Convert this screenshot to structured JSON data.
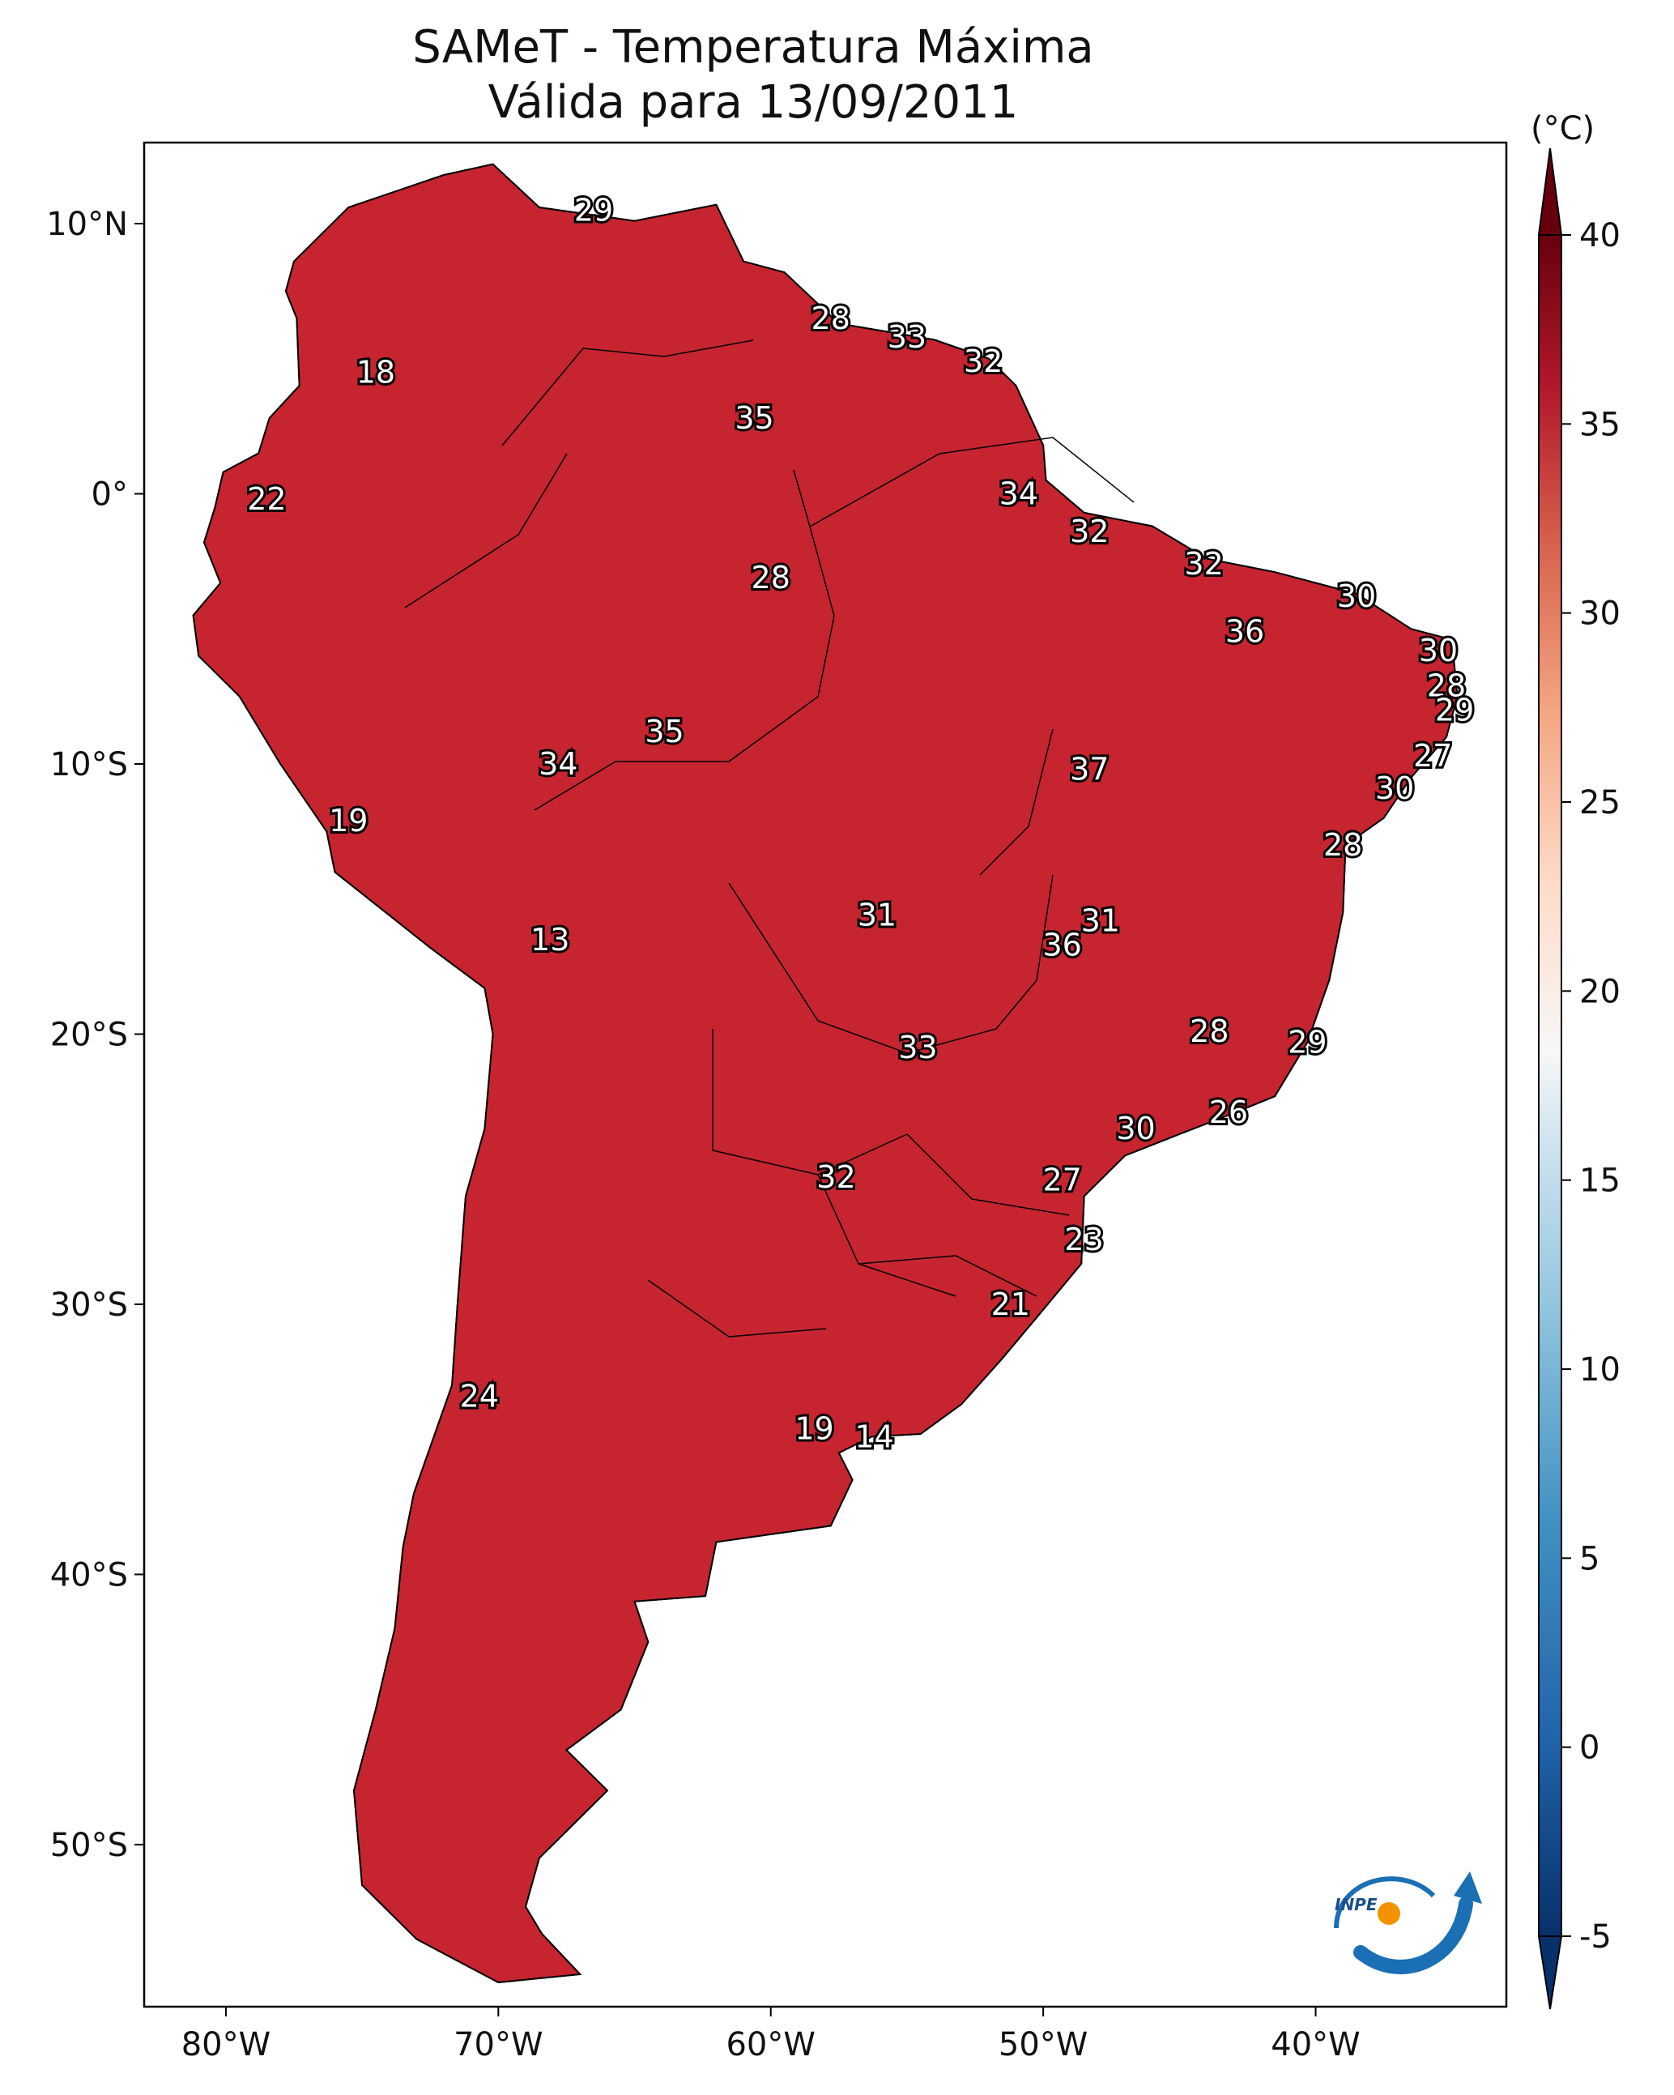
{
  "title_line1": "SAMeT - Temperatura Máxima",
  "title_line2": "Válida para 13/09/2011",
  "colorbar": {
    "unit": "(°C)",
    "ticks": [
      40,
      35,
      30,
      25,
      20,
      15,
      10,
      5,
      0,
      -5
    ],
    "min": -5,
    "max": 40,
    "colors": {
      "cold": "#08306b",
      "mid": "#f7f7f7",
      "hot": "#67000d"
    }
  },
  "axes": {
    "lat_ticks": [
      "10°N",
      "0°",
      "10°S",
      "20°S",
      "30°S",
      "40°S",
      "50°S"
    ],
    "lon_ticks": [
      "80°W",
      "70°W",
      "60°W",
      "50°W",
      "40°W"
    ]
  },
  "map_extent": {
    "lon": [
      -83,
      -33
    ],
    "lat": [
      -56,
      13
    ]
  },
  "stations": [
    {
      "value": "29",
      "lon": -66.5,
      "lat": 10.5
    },
    {
      "value": "28",
      "lon": -57.8,
      "lat": 6.5
    },
    {
      "value": "33",
      "lon": -55,
      "lat": 5.8
    },
    {
      "value": "32",
      "lon": -52.2,
      "lat": 4.9
    },
    {
      "value": "18",
      "lon": -74.5,
      "lat": 4.5
    },
    {
      "value": "35",
      "lon": -60.6,
      "lat": 2.8
    },
    {
      "value": "34",
      "lon": -50.9,
      "lat": 0.0
    },
    {
      "value": "22",
      "lon": -78.5,
      "lat": -0.2
    },
    {
      "value": "32",
      "lon": -48.3,
      "lat": -1.4
    },
    {
      "value": "32",
      "lon": -44.1,
      "lat": -2.6
    },
    {
      "value": "28",
      "lon": -60,
      "lat": -3.1
    },
    {
      "value": "30",
      "lon": -38.5,
      "lat": -3.8
    },
    {
      "value": "36",
      "lon": -42.6,
      "lat": -5.1
    },
    {
      "value": "30",
      "lon": -35.5,
      "lat": -5.8
    },
    {
      "value": "28",
      "lon": -35.2,
      "lat": -7.1
    },
    {
      "value": "29",
      "lon": -34.9,
      "lat": -8.0
    },
    {
      "value": "35",
      "lon": -63.9,
      "lat": -8.8
    },
    {
      "value": "27",
      "lon": -35.7,
      "lat": -9.7
    },
    {
      "value": "34",
      "lon": -67.8,
      "lat": -10.0
    },
    {
      "value": "37",
      "lon": -48.3,
      "lat": -10.2
    },
    {
      "value": "30",
      "lon": -37.1,
      "lat": -10.9
    },
    {
      "value": "19",
      "lon": -75.5,
      "lat": -12.1
    },
    {
      "value": "28",
      "lon": -39,
      "lat": -13.0
    },
    {
      "value": "31",
      "lon": -56.1,
      "lat": -15.6
    },
    {
      "value": "31",
      "lon": -47.9,
      "lat": -15.8
    },
    {
      "value": "36",
      "lon": -49.3,
      "lat": -16.7
    },
    {
      "value": "13",
      "lon": -68.1,
      "lat": -16.5
    },
    {
      "value": "28",
      "lon": -43.9,
      "lat": -19.9
    },
    {
      "value": "29",
      "lon": -40.3,
      "lat": -20.3
    },
    {
      "value": "33",
      "lon": -54.6,
      "lat": -20.5
    },
    {
      "value": "26",
      "lon": -43.2,
      "lat": -22.9
    },
    {
      "value": "30",
      "lon": -46.6,
      "lat": -23.5
    },
    {
      "value": "32",
      "lon": -57.6,
      "lat": -25.3
    },
    {
      "value": "27",
      "lon": -49.3,
      "lat": -25.4
    },
    {
      "value": "23",
      "lon": -48.5,
      "lat": -27.6
    },
    {
      "value": "21",
      "lon": -51.2,
      "lat": -30.0
    },
    {
      "value": "24",
      "lon": -70.7,
      "lat": -33.4
    },
    {
      "value": "19",
      "lon": -58.4,
      "lat": -34.6
    },
    {
      "value": "14",
      "lon": -56.2,
      "lat": -34.9
    }
  ],
  "logo_text": "INPE"
}
